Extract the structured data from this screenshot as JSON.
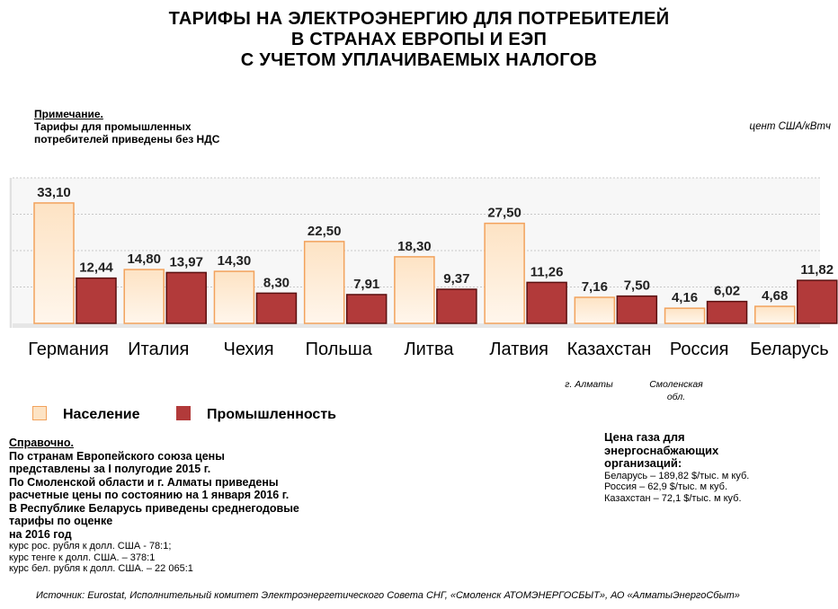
{
  "title_lines": [
    "ТАРИФЫ НА ЭЛЕКТРОЭНЕРГИЮ ДЛЯ ПОТРЕБИТЕЛЕЙ",
    "В СТРАНАХ ЕВРОПЫ И ЕЭП",
    "С УЧЕТОМ УПЛАЧИВАЕМЫХ НАЛОГОВ"
  ],
  "note": {
    "heading": "Примечание.",
    "lines": [
      "Тарифы для промышленных",
      "потребителей  приведены  без НДС"
    ]
  },
  "unit": "цент США/кВтч",
  "colors": {
    "population_fill_top": "#fde3c4",
    "population_fill_bottom": "#fff6ec",
    "population_stroke": "#f2a25c",
    "industry_fill": "#b23a3a",
    "industry_stroke": "#5a1010",
    "grid": "#c8c8c8"
  },
  "chart_data": {
    "type": "bar",
    "categories": [
      "Германия",
      "Италия",
      "Чехия",
      "Польша",
      "Литва",
      "Латвия",
      "Казахстан",
      "Россия",
      "Беларусь"
    ],
    "series": [
      {
        "name": "Население",
        "values": [
          33.1,
          14.8,
          14.3,
          22.5,
          18.3,
          27.5,
          7.16,
          4.16,
          4.68
        ],
        "labels": [
          "33,10",
          "14,80",
          "14,30",
          "22,50",
          "18,30",
          "27,50",
          "7,16",
          "4,16",
          "4,68"
        ]
      },
      {
        "name": "Промышленность",
        "values": [
          12.44,
          13.97,
          8.3,
          7.91,
          9.37,
          11.26,
          7.5,
          6.02,
          11.82
        ],
        "labels": [
          "12,44",
          "13,97",
          "8,30",
          "7,91",
          "9,37",
          "11,26",
          "7,50",
          "6,02",
          "11,82"
        ]
      }
    ],
    "ylim": [
      0,
      40
    ],
    "grid": true,
    "legend_position": "bottom-left"
  },
  "city_notes": {
    "kazakhstan": "г. Алматы",
    "russia_line1": "Смоленская",
    "russia_line2": "обл."
  },
  "legend": {
    "population": "Население",
    "industry": "Промышленность"
  },
  "reference": {
    "heading": "Справочно.",
    "lines": [
      "По странам Европейского союза цены",
      "представлены за I полугодие 2015 г.",
      "По Смоленской области и г. Алматы приведены",
      "расчетные цены по состоянию на 1 января  2016 г.",
      "В Республике Беларусь приведены  среднегодовые",
      "тарифы по оценке",
      "на 2016 год"
    ],
    "rates": [
      "курс рос. рубля к долл. США - 78:1;",
      "курс тенге к долл. США. – 378:1",
      "курс бел. рубля к долл. США. – 22 065:1"
    ]
  },
  "gas": {
    "heading": [
      "Цена газа для",
      "энергоснабжающих",
      "организаций:"
    ],
    "rows": [
      "Беларусь – 189,82 $/тыс. м куб.",
      "Россия –  62,9 $/тыс. м куб.",
      "Казахстан – 72,1 $/тыс. м куб."
    ]
  },
  "source": "Источник: Eurostat, Исполнительный комитет Электроэнергетического Совета СНГ, «Смоленск АТОМЭНЕРГОСБЫТ», АО «АлматыЭнергоСбыт»"
}
